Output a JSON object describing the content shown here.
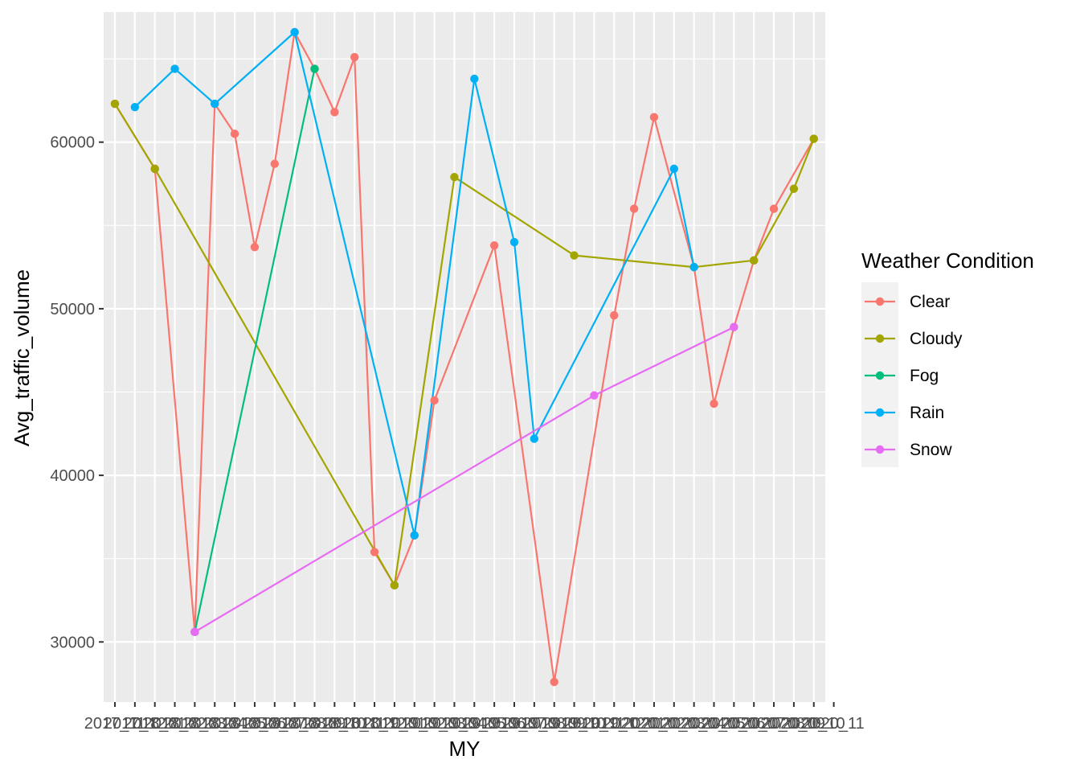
{
  "chart_data": {
    "type": "line",
    "xlabel": "MY",
    "ylabel": "Avg_traffic_volume",
    "x_tick_labels": [
      "2017_11",
      "2017_12",
      "2018_01",
      "2018_02",
      "2018_03",
      "2018_04",
      "2018_05",
      "2018_06",
      "2018_07",
      "2018_08",
      "2018_09",
      "2018_10",
      "2018_11",
      "2018_12",
      "2019_01",
      "2019_02",
      "2019_03",
      "2019_04",
      "2019_05",
      "2019_06",
      "2019_07",
      "2019_08",
      "2019_09",
      "2019_10",
      "2019_11",
      "2019_12",
      "2020_01",
      "2020_02",
      "2020_03",
      "2020_04",
      "2020_05",
      "2020_06",
      "2020_07",
      "2020_08",
      "2020_09",
      "2020_10",
      "2020_11"
    ],
    "ylim": [
      26000,
      67500
    ],
    "y_ticks": [
      30000,
      40000,
      50000,
      60000
    ],
    "y_tick_labels": [
      "30000",
      "40000",
      "50000",
      "60000"
    ],
    "grid": true,
    "legend": {
      "title": "Weather Condition",
      "position": "right"
    },
    "series": [
      {
        "name": "Clear",
        "color": "#F8766D",
        "points": [
          [
            1,
            62300
          ],
          [
            3,
            58400
          ],
          [
            5,
            30600
          ],
          [
            6,
            62300
          ],
          [
            7,
            60500
          ],
          [
            8,
            53700
          ],
          [
            9,
            58700
          ],
          [
            10,
            66600
          ],
          [
            11,
            64400
          ],
          [
            12,
            61800
          ],
          [
            13,
            65100
          ],
          [
            14,
            35400
          ],
          [
            15,
            33400
          ],
          [
            16,
            36400
          ],
          [
            17,
            44500
          ],
          [
            20,
            53800
          ],
          [
            23,
            27600
          ],
          [
            26,
            49600
          ],
          [
            27,
            56000
          ],
          [
            28,
            61500
          ],
          [
            30,
            52500
          ],
          [
            31,
            44300
          ],
          [
            32,
            48900
          ],
          [
            33,
            52900
          ],
          [
            34,
            56000
          ],
          [
            36,
            60200
          ]
        ]
      },
      {
        "name": "Cloudy",
        "color": "#A3A500",
        "points": [
          [
            1,
            62300
          ],
          [
            3,
            58400
          ],
          [
            15,
            33400
          ],
          [
            18,
            57900
          ],
          [
            24,
            53200
          ],
          [
            30,
            52500
          ],
          [
            33,
            52900
          ],
          [
            35,
            57200
          ],
          [
            36,
            60200
          ]
        ]
      },
      {
        "name": "Fog",
        "color": "#00BF7D",
        "points": [
          [
            5,
            30600
          ],
          [
            11,
            64400
          ]
        ]
      },
      {
        "name": "Rain",
        "color": "#00B0F6",
        "points": [
          [
            2,
            62100
          ],
          [
            4,
            64400
          ],
          [
            6,
            62300
          ],
          [
            10,
            66600
          ],
          [
            16,
            36400
          ],
          [
            19,
            63800
          ],
          [
            21,
            54000
          ],
          [
            22,
            42200
          ],
          [
            29,
            58400
          ],
          [
            30,
            52500
          ]
        ]
      },
      {
        "name": "Snow",
        "color": "#E76BF3",
        "points": [
          [
            5,
            30600
          ],
          [
            25,
            44800
          ],
          [
            32,
            48900
          ]
        ]
      }
    ]
  }
}
